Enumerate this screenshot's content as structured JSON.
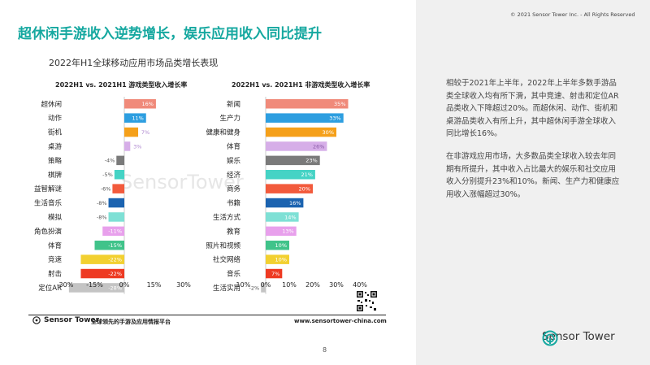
{
  "copyright": "© 2021 Sensor Tower Inc. - All Rights Reserved",
  "title": "超休闲手游收入逆势增长，娱乐应用收入同比提升",
  "subtitle": "2022年H1全球移动应用市场品类增长表现",
  "watermark": "SensorTower",
  "colors": {
    "accent": "#16a8a0",
    "panel": "#f0f0f0"
  },
  "chart_data": [
    {
      "type": "bar",
      "orientation": "horizontal",
      "title": "2022H1 vs. 2021H1 游戏类型收入增长率",
      "categories": [
        "超休闲",
        "动作",
        "街机",
        "桌游",
        "策略",
        "棋牌",
        "益智解谜",
        "生活音乐",
        "模拟",
        "角色扮演",
        "体育",
        "竞速",
        "射击",
        "定位AR"
      ],
      "values": [
        16,
        11,
        7,
        3,
        -4,
        -5,
        -6,
        -8,
        -8,
        -11,
        -15,
        -22,
        -22,
        -28
      ],
      "value_labels": [
        "16%",
        "11%",
        "7%",
        "3%",
        "-4%",
        "-5%",
        "-6%",
        "-8%",
        "-8%",
        "-11%",
        "-15%",
        "-22%",
        "-22%",
        "-28%"
      ],
      "colors": [
        "#f08a7a",
        "#2d9ee0",
        "#f5a01a",
        "#d6aee8",
        "#7a7a7a",
        "#45d3c5",
        "#f25a3c",
        "#1b63b0",
        "#7ee0d5",
        "#e8a0ec",
        "#40c38a",
        "#f2d030",
        "#ee3a22",
        "#c4c4c4"
      ],
      "xlim": [
        -30,
        30
      ],
      "ticks": [
        "-30%",
        "-15%",
        "0%",
        "15%",
        "30%"
      ],
      "tick_values": [
        -30,
        -15,
        0,
        15,
        30
      ]
    },
    {
      "type": "bar",
      "orientation": "horizontal",
      "title": "2022H1 vs. 2021H1 非游戏类型收入增长率",
      "categories": [
        "新闻",
        "生产力",
        "健康和健身",
        "体育",
        "娱乐",
        "经济",
        "商务",
        "书籍",
        "生活方式",
        "教育",
        "照片和视频",
        "社交网络",
        "音乐",
        "生活实用"
      ],
      "values": [
        35,
        33,
        30,
        26,
        23,
        21,
        20,
        16,
        14,
        13,
        10,
        10,
        7,
        -2
      ],
      "value_labels": [
        "35%",
        "33%",
        "30%",
        "26%",
        "23%",
        "21%",
        "20%",
        "16%",
        "14%",
        "13%",
        "10%",
        "10%",
        "7%",
        "-2%"
      ],
      "colors": [
        "#f08a7a",
        "#2d9ee0",
        "#f5a01a",
        "#d6aee8",
        "#7a7a7a",
        "#45d3c5",
        "#f25a3c",
        "#1b63b0",
        "#7ee0d5",
        "#e8a0ec",
        "#40c38a",
        "#f2d030",
        "#ee3a22",
        "#c4c4c4"
      ],
      "xlim": [
        -10,
        40
      ],
      "ticks": [
        "-10%",
        "0%",
        "10%",
        "20%",
        "30%",
        "40%"
      ],
      "tick_values": [
        -10,
        0,
        10,
        20,
        30,
        40
      ]
    }
  ],
  "right_panel": {
    "para1": "相较于2021年上半年，2022年上半年多数手游品类全球收入均有所下滑，其中竞速、射击和定位AR品类收入下降超过20%。而超休闲、动作、街机和桌游品类收入有所上升，其中超休闲手游全球收入同比增长16%。",
    "para2": "在非游戏应用市场，大多数品类全球收入较去年同期有所提升，其中收入占比最大的娱乐和社交应用收入分别提升23%和10%。新闻、生产力和健康应用收入涨幅超过30%。",
    "brand": "Sensor Tower"
  },
  "footer": {
    "brand": "Sensor Tower",
    "tagline": "全球领先的手游及应用情报平台",
    "url": "www.sensortower-china.com",
    "page": "8"
  }
}
